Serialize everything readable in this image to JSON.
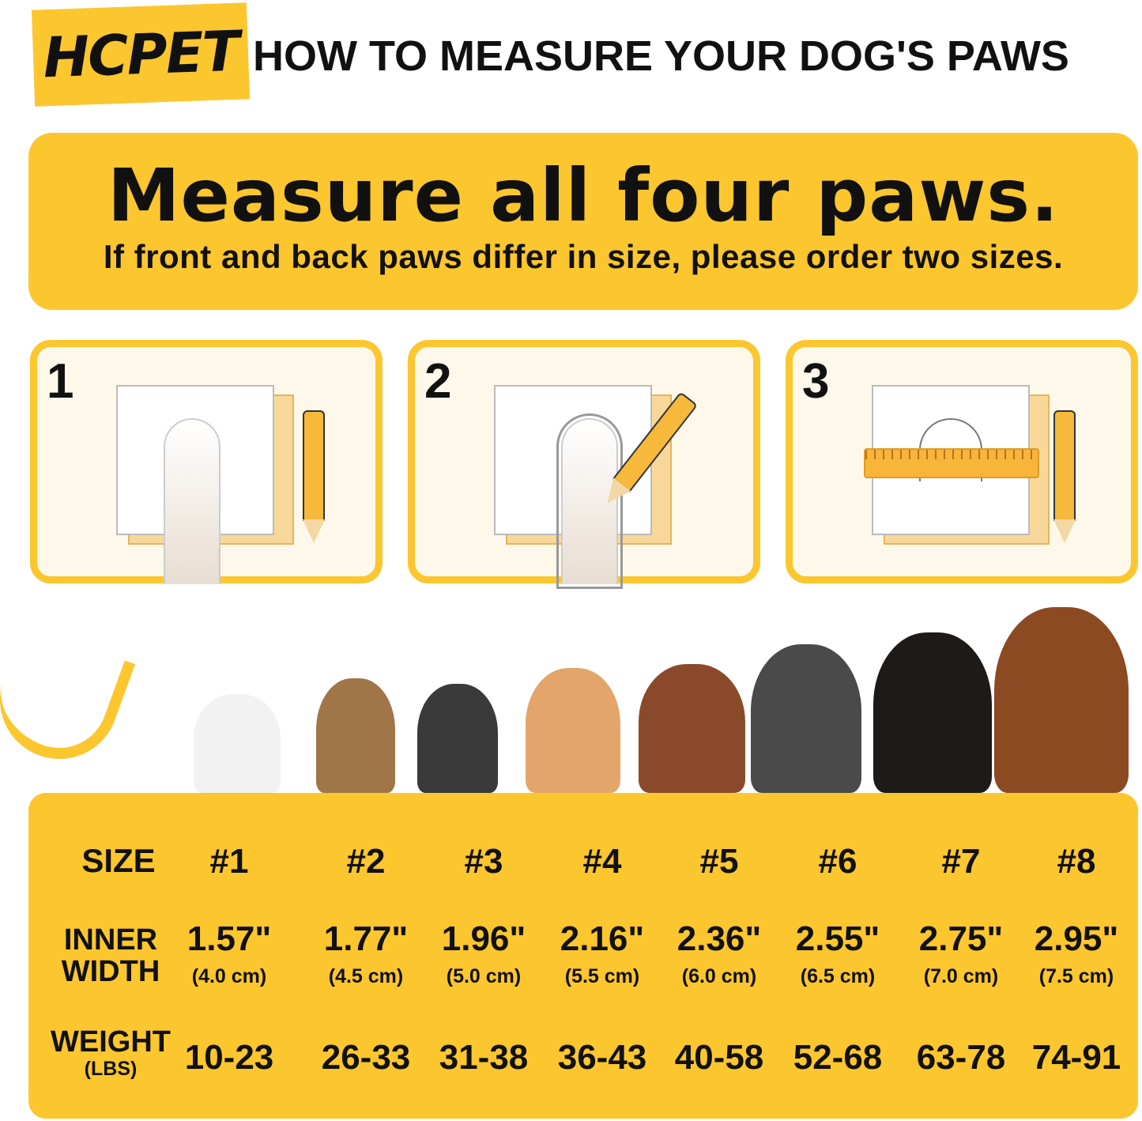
{
  "brand": {
    "logo": "HCPET",
    "accent": "#fcc62f"
  },
  "header": {
    "title": "HOW TO MEASURE YOUR DOG'S PAWS"
  },
  "banner": {
    "headline": "Measure all four paws.",
    "subtext": "If front and back paws differ in size, please order two sizes."
  },
  "steps": [
    {
      "number": "1"
    },
    {
      "number": "2"
    },
    {
      "number": "3"
    }
  ],
  "table": {
    "size_label": "SIZE",
    "width_label_1": "INNER",
    "width_label_2": "WIDTH",
    "weight_label_1": "WEIGHT",
    "weight_label_2": "(LBS)",
    "columns": [
      {
        "size": "#1",
        "inch": "1.57\"",
        "cm": "(4.0 cm)",
        "weight": "10-23"
      },
      {
        "size": "#2",
        "inch": "1.77\"",
        "cm": "(4.5 cm)",
        "weight": "26-33"
      },
      {
        "size": "#3",
        "inch": "1.96\"",
        "cm": "(5.0 cm)",
        "weight": "31-38"
      },
      {
        "size": "#4",
        "inch": "2.16\"",
        "cm": "(5.5 cm)",
        "weight": "36-43"
      },
      {
        "size": "#5",
        "inch": "2.36\"",
        "cm": "(6.0 cm)",
        "weight": "40-58"
      },
      {
        "size": "#6",
        "inch": "2.55\"",
        "cm": "(6.5 cm)",
        "weight": "52-68"
      },
      {
        "size": "#7",
        "inch": "2.75\"",
        "cm": "(7.0 cm)",
        "weight": "63-78"
      },
      {
        "size": "#8",
        "inch": "2.95\"",
        "cm": "(7.5 cm)",
        "weight": "74-91"
      }
    ]
  }
}
